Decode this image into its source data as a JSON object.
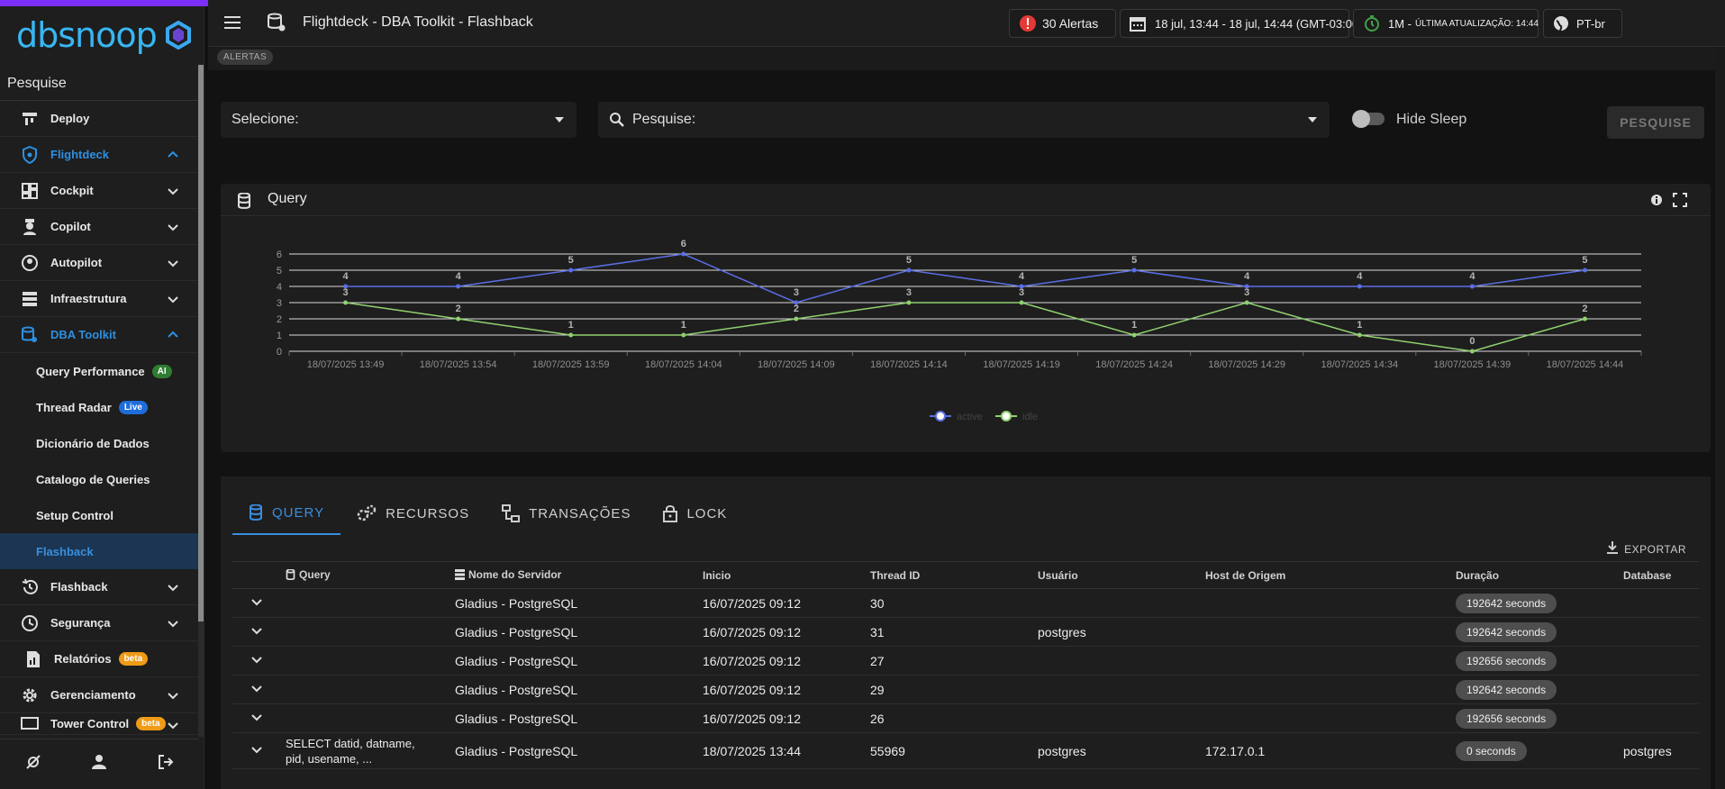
{
  "sidebar": {
    "brand": "dbsnoop",
    "search_label": "Pesquise",
    "items": [
      {
        "label": "Deploy"
      },
      {
        "label": "Flightdeck"
      },
      {
        "label": "Cockpit"
      },
      {
        "label": "Copilot"
      },
      {
        "label": "Autopilot"
      },
      {
        "label": "Infraestrutura"
      },
      {
        "label": "DBA Toolkit"
      }
    ],
    "subitems": [
      {
        "label": "Query Performance",
        "badge": "AI"
      },
      {
        "label": "Thread Radar",
        "badge": "Live"
      },
      {
        "label": "Dicionário de Dados"
      },
      {
        "label": "Catalogo de Queries"
      },
      {
        "label": "Setup Control"
      },
      {
        "label": "Flashback"
      }
    ],
    "items2": [
      {
        "label": "Flashback"
      },
      {
        "label": "Segurança"
      },
      {
        "label": "Relatórios",
        "badge": "beta"
      },
      {
        "label": "Gerenciamento"
      },
      {
        "label": "Tower Control",
        "badge": "beta"
      }
    ]
  },
  "appbar": {
    "title": "Flightdeck - DBA Toolkit - Flashback",
    "alerts": "30 Alertas",
    "date_range": "18 jul, 13:44 - 18 jul, 14:44 (GMT-03:00)",
    "refresh_interval": "1M -",
    "last_update": "ÚLTIMA ATUALIZAÇÃO: 14:44",
    "language": "PT-br",
    "alerts_tag": "ALERTAS"
  },
  "filters": {
    "select_label": "Selecione:",
    "search_label": "Pesquise:",
    "hide_sleep": "Hide Sleep",
    "search_button": "PESQUISE"
  },
  "chart_card": {
    "title": "Query"
  },
  "chart_data": {
    "type": "line",
    "x": [
      "18/07/2025 13:49",
      "18/07/2025 13:54",
      "18/07/2025 13:59",
      "18/07/2025 14:04",
      "18/07/2025 14:09",
      "18/07/2025 14:14",
      "18/07/2025 14:19",
      "18/07/2025 14:24",
      "18/07/2025 14:29",
      "18/07/2025 14:34",
      "18/07/2025 14:39",
      "18/07/2025 14:44"
    ],
    "series": [
      {
        "name": "active",
        "color": "#5b6ee6",
        "values": [
          4,
          4,
          5,
          6,
          3,
          5,
          4,
          5,
          4,
          4,
          4,
          5
        ]
      },
      {
        "name": "idle",
        "color": "#8fd16e",
        "values": [
          3,
          2,
          1,
          1,
          2,
          3,
          3,
          1,
          3,
          1,
          0,
          2
        ]
      }
    ],
    "ylim": [
      0,
      6
    ],
    "yticks": [
      "0",
      "1",
      "2",
      "3",
      "4",
      "5",
      "6"
    ],
    "legend": "bottom-center",
    "grid": true
  },
  "tabs": [
    {
      "label": "QUERY",
      "active": true
    },
    {
      "label": "RECURSOS"
    },
    {
      "label": "TRANSAÇÕES"
    },
    {
      "label": "LOCK"
    }
  ],
  "export_label": "EXPORTAR",
  "table": {
    "headers": [
      "Query",
      "Nome do Servidor",
      "Inicio",
      "Thread ID",
      "Usuário",
      "Host de Origem",
      "Duração",
      "Database"
    ],
    "rows": [
      {
        "query": "",
        "server": "Gladius - PostgreSQL",
        "start": "16/07/2025 09:12",
        "thread": "30",
        "user": "",
        "host": "",
        "duration": "192642 seconds",
        "db": ""
      },
      {
        "query": "",
        "server": "Gladius - PostgreSQL",
        "start": "16/07/2025 09:12",
        "thread": "31",
        "user": "postgres",
        "host": "",
        "duration": "192642 seconds",
        "db": ""
      },
      {
        "query": "",
        "server": "Gladius - PostgreSQL",
        "start": "16/07/2025 09:12",
        "thread": "27",
        "user": "",
        "host": "",
        "duration": "192656 seconds",
        "db": ""
      },
      {
        "query": "",
        "server": "Gladius - PostgreSQL",
        "start": "16/07/2025 09:12",
        "thread": "29",
        "user": "",
        "host": "",
        "duration": "192642 seconds",
        "db": ""
      },
      {
        "query": "",
        "server": "Gladius - PostgreSQL",
        "start": "16/07/2025 09:12",
        "thread": "26",
        "user": "",
        "host": "",
        "duration": "192656 seconds",
        "db": ""
      },
      {
        "query": "SELECT datid, datname, pid, usename, ...",
        "server": "Gladius - PostgreSQL",
        "start": "18/07/2025 13:44",
        "thread": "55969",
        "user": "postgres",
        "host": "172.17.0.1",
        "duration": "0 seconds",
        "db": "postgres"
      }
    ]
  }
}
